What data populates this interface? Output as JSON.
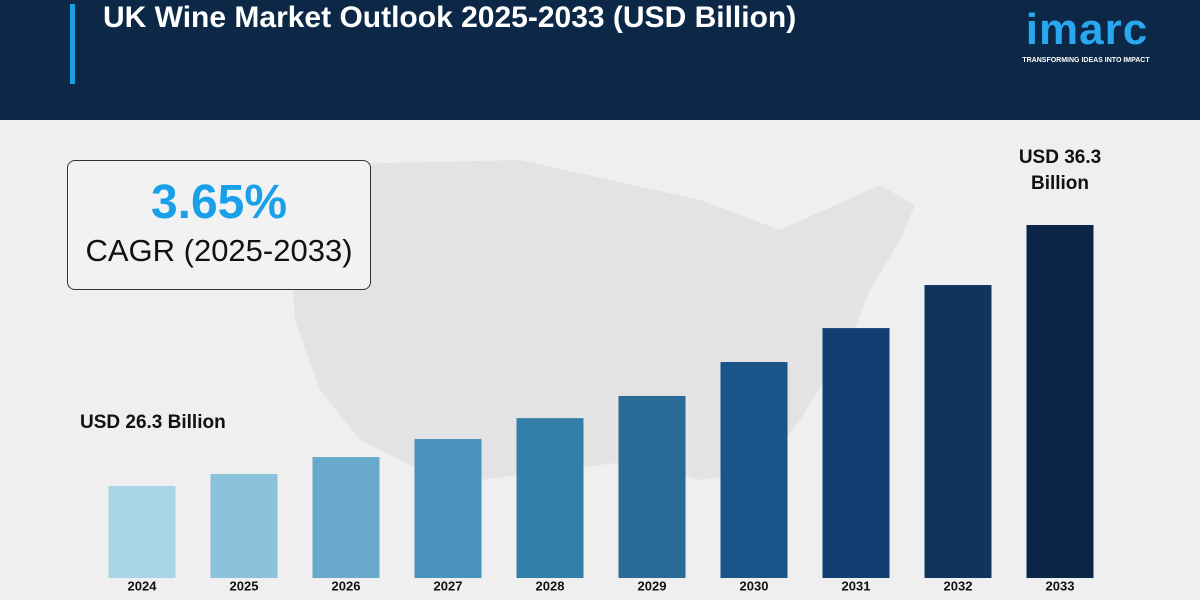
{
  "chart_data": {
    "type": "bar",
    "title": "UK Wine Market Outlook 2025-2033 (USD Billion)",
    "brand": "imarc",
    "brand_tagline": "TRANSFORMING IDEAS INTO IMPACT",
    "cagr": "3.65%",
    "cagr_label": "CAGR (2025-2033)",
    "categories": [
      "2024",
      "2025",
      "2026",
      "2027",
      "2028",
      "2029",
      "2030",
      "2031",
      "2032",
      "2033"
    ],
    "values": [
      26.3,
      26.76,
      27.41,
      28.1,
      28.9,
      29.75,
      31.05,
      32.35,
      34.0,
      36.3
    ],
    "value_labels": [
      "USD 26.3 Billion",
      null,
      null,
      null,
      null,
      null,
      null,
      null,
      null,
      "USD 36.3 Billion"
    ],
    "colors": [
      "#a8d4e6",
      "#8cc3dc",
      "#68a9cc",
      "#4a93bd",
      "#347fa9",
      "#2a6a96",
      "#1a5488",
      "#123f73",
      "#0f355f",
      "#0b2647"
    ]
  }
}
